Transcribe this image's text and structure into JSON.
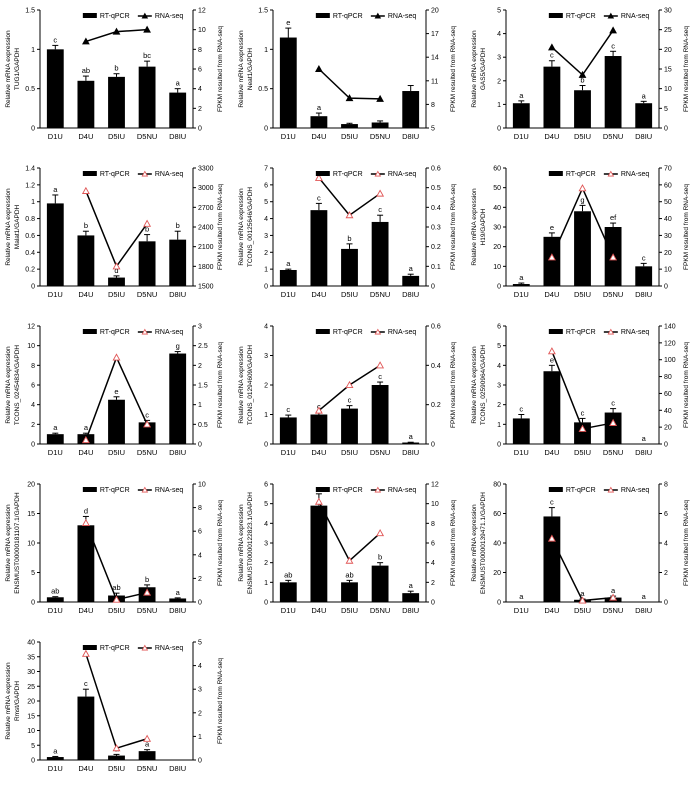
{
  "figure": {
    "x_categories": [
      "D1U",
      "D4U",
      "D5IU",
      "D5NU",
      "D8IU"
    ]
  },
  "legend": {
    "bar_label": "RT-qPCR",
    "line_label": "RNA-seq"
  },
  "axes": {
    "right_label": "FPKM resulted from RNA-seq",
    "left_label_line1": "Relative mRNA expression"
  },
  "colors": {
    "bar": "#000000",
    "line": "#000000",
    "marker_open": "#e05555",
    "marker_fill": "#ffffff"
  },
  "chart_data": [
    {
      "type": "bar",
      "gene": "TUG1/GAPDH",
      "categories": [
        "D1U",
        "D4U",
        "D5IU",
        "D5NU",
        "D8IU"
      ],
      "values": [
        1.0,
        0.6,
        0.65,
        0.78,
        0.45
      ],
      "errors": [
        0.05,
        0.06,
        0.04,
        0.07,
        0.05
      ],
      "letters": [
        "c",
        "ab",
        "b",
        "bc",
        "a"
      ],
      "ylim": [
        0,
        1.5
      ],
      "yticks": [
        0,
        0.5,
        1,
        1.5
      ],
      "line_values": [
        null,
        8.8,
        9.8,
        10.0,
        null
      ],
      "y2lim": [
        0,
        12
      ],
      "y2ticks": [
        0,
        2,
        4,
        6,
        8,
        10,
        12
      ],
      "marker": "filled"
    },
    {
      "type": "bar",
      "gene": "Neat1/GAPDH",
      "categories": [
        "D1U",
        "D4U",
        "D5IU",
        "D5NU",
        "D8IU"
      ],
      "values": [
        1.15,
        0.15,
        0.05,
        0.07,
        0.47
      ],
      "errors": [
        0.12,
        0.04,
        0.01,
        0.02,
        0.07
      ],
      "letters": [
        "e",
        "a",
        "",
        "",
        ""
      ],
      "ylim": [
        0,
        1.5
      ],
      "yticks": [
        0,
        0.5,
        1,
        1.5
      ],
      "line_values": [
        null,
        12.5,
        8.8,
        8.7,
        null
      ],
      "y2lim": [
        5,
        20
      ],
      "y2ticks": [
        5,
        8,
        11,
        14,
        17,
        20
      ],
      "marker": "filled"
    },
    {
      "type": "bar",
      "gene": "GAS5/GAPDH",
      "categories": [
        "D1U",
        "D4U",
        "D5IU",
        "D5NU",
        "D8IU"
      ],
      "values": [
        1.05,
        2.6,
        1.6,
        3.05,
        1.05
      ],
      "errors": [
        0.1,
        0.25,
        0.2,
        0.2,
        0.08
      ],
      "letters": [
        "a",
        "c",
        "b",
        "c",
        "a"
      ],
      "ylim": [
        0,
        5
      ],
      "yticks": [
        0,
        1,
        2,
        3,
        4,
        5
      ],
      "line_values": [
        null,
        20.5,
        13.5,
        24.8,
        null
      ],
      "y2lim": [
        0,
        30
      ],
      "y2ticks": [
        0,
        5,
        10,
        15,
        20,
        25,
        30
      ],
      "marker": "filled"
    },
    {
      "type": "bar",
      "gene": "Malat1/GAPDH",
      "categories": [
        "D1U",
        "D4U",
        "D5IU",
        "D5NU",
        "D8IU"
      ],
      "values": [
        0.98,
        0.6,
        0.1,
        0.53,
        0.55
      ],
      "errors": [
        0.1,
        0.05,
        0.02,
        0.08,
        0.1
      ],
      "letters": [
        "a",
        "b",
        "d",
        "b",
        "b"
      ],
      "ylim": [
        0,
        1.4
      ],
      "yticks": [
        0,
        0.2,
        0.4,
        0.6,
        0.8,
        1.0,
        1.2,
        1.4
      ],
      "line_values": [
        null,
        2950,
        1800,
        2450,
        null
      ],
      "y2lim": [
        1500,
        3300
      ],
      "y2ticks": [
        1500,
        1800,
        2100,
        2400,
        2700,
        3000,
        3300
      ],
      "marker": "open"
    },
    {
      "type": "bar",
      "gene": "TCONS_00125646/GAPDH",
      "categories": [
        "D1U",
        "D4U",
        "D5IU",
        "D5NU",
        "D8IU"
      ],
      "values": [
        0.95,
        4.5,
        2.2,
        3.8,
        0.6
      ],
      "errors": [
        0.05,
        0.4,
        0.3,
        0.4,
        0.1
      ],
      "letters": [
        "a",
        "c",
        "b",
        "c",
        "a"
      ],
      "ylim": [
        0,
        7
      ],
      "yticks": [
        0,
        1,
        2,
        3,
        4,
        5,
        6,
        7
      ],
      "line_values": [
        null,
        0.55,
        0.36,
        0.47,
        null
      ],
      "y2lim": [
        0,
        0.6
      ],
      "y2ticks": [
        0,
        0.1,
        0.2,
        0.3,
        0.4,
        0.5,
        0.6
      ],
      "marker": "open"
    },
    {
      "type": "bar",
      "gene": "H19/GAPDH",
      "categories": [
        "D1U",
        "D4U",
        "D5IU",
        "D5NU",
        "D8IU"
      ],
      "values": [
        1,
        25,
        38,
        30,
        10
      ],
      "errors": [
        0.5,
        2,
        3,
        2,
        1.5
      ],
      "letters": [
        "a",
        "e",
        "g",
        "ef",
        "c"
      ],
      "ylim": [
        0,
        60
      ],
      "yticks": [
        0,
        10,
        20,
        30,
        40,
        50,
        60
      ],
      "line_values": [
        null,
        17,
        58,
        17,
        null
      ],
      "y2lim": [
        0,
        70
      ],
      "y2ticks": [
        0,
        10,
        20,
        30,
        40,
        50,
        60,
        70
      ],
      "marker": "open"
    },
    {
      "type": "bar",
      "gene": "TCONS_02454834/GAPDH",
      "categories": [
        "D1U",
        "D4U",
        "D5IU",
        "D5NU",
        "D8IU"
      ],
      "values": [
        1,
        1,
        4.5,
        2.2,
        9.2
      ],
      "errors": [
        0.1,
        0.1,
        0.3,
        0.2,
        0.2
      ],
      "letters": [
        "a",
        "a",
        "e",
        "c",
        "g"
      ],
      "ylim": [
        0,
        12
      ],
      "yticks": [
        0,
        2,
        4,
        6,
        8,
        10,
        12
      ],
      "line_values": [
        null,
        0.1,
        2.2,
        0.5,
        null
      ],
      "y2lim": [
        0,
        3
      ],
      "y2ticks": [
        0,
        0.5,
        1,
        1.5,
        2,
        2.5,
        3
      ],
      "marker": "open"
    },
    {
      "type": "bar",
      "gene": "TCONS_01294609/GAPDH",
      "categories": [
        "D1U",
        "D4U",
        "D5IU",
        "D5NU",
        "D8IU"
      ],
      "values": [
        0.9,
        1.0,
        1.2,
        2.0,
        0.05
      ],
      "errors": [
        0.08,
        0.08,
        0.1,
        0.1,
        0.01
      ],
      "letters": [
        "c",
        "c",
        "c",
        "c",
        "a"
      ],
      "ylim": [
        0,
        4
      ],
      "yticks": [
        0,
        1,
        2,
        3,
        4
      ],
      "line_values": [
        null,
        0.17,
        0.3,
        0.4,
        null
      ],
      "y2lim": [
        0,
        0.6
      ],
      "y2ticks": [
        0,
        0.2,
        0.4,
        0.6
      ],
      "marker": "open"
    },
    {
      "type": "bar",
      "gene": "TCONS_02590964/GAPDH",
      "categories": [
        "D1U",
        "D4U",
        "D5IU",
        "D5NU",
        "D8IU"
      ],
      "values": [
        1.3,
        3.7,
        1.1,
        1.6,
        0
      ],
      "errors": [
        0.2,
        0.3,
        0.2,
        0.2,
        0
      ],
      "letters": [
        "c",
        "e",
        "c",
        "c",
        "a"
      ],
      "ylim": [
        0,
        6
      ],
      "yticks": [
        0,
        1,
        2,
        3,
        4,
        5,
        6
      ],
      "line_values": [
        null,
        110,
        18,
        25,
        null
      ],
      "y2lim": [
        0,
        140
      ],
      "y2ticks": [
        0,
        20,
        40,
        60,
        80,
        100,
        120,
        140
      ],
      "marker": "open"
    },
    {
      "type": "bar",
      "gene": "ENSMUST00000181107.1/GAPDH",
      "categories": [
        "D1U",
        "D4U",
        "D5IU",
        "D5NU",
        "D8IU"
      ],
      "values": [
        0.8,
        13,
        1.1,
        2.5,
        0.6
      ],
      "errors": [
        0.1,
        1.5,
        0.4,
        0.4,
        0.1
      ],
      "letters": [
        "ab",
        "d",
        "ab",
        "b",
        "a"
      ],
      "ylim": [
        0,
        20
      ],
      "yticks": [
        0,
        5,
        10,
        15,
        20
      ],
      "line_values": [
        null,
        6.7,
        0.2,
        0.8,
        null
      ],
      "y2lim": [
        0,
        10
      ],
      "y2ticks": [
        0,
        2,
        4,
        6,
        8,
        10
      ],
      "marker": "open"
    },
    {
      "type": "bar",
      "gene": "ENSMUST00000122823.1/GAPDH",
      "categories": [
        "D1U",
        "D4U",
        "D5IU",
        "D5NU",
        "D8IU"
      ],
      "values": [
        1.0,
        4.9,
        1.0,
        1.85,
        0.45
      ],
      "errors": [
        0.1,
        0.6,
        0.1,
        0.15,
        0.1
      ],
      "letters": [
        "ab",
        "c",
        "ab",
        "b",
        "a"
      ],
      "ylim": [
        0,
        6
      ],
      "yticks": [
        0,
        1,
        2,
        3,
        4,
        5,
        6
      ],
      "line_values": [
        null,
        10.2,
        4.2,
        7.0,
        null
      ],
      "y2lim": [
        0,
        12
      ],
      "y2ticks": [
        0,
        2,
        4,
        6,
        8,
        10,
        12
      ],
      "marker": "open"
    },
    {
      "type": "bar",
      "gene": "ENSMUST00000139471.1/GAPDH",
      "categories": [
        "D1U",
        "D4U",
        "D5IU",
        "D5NU",
        "D8IU"
      ],
      "values": [
        0,
        58,
        1.5,
        3,
        0
      ],
      "errors": [
        0,
        6,
        0.5,
        1,
        0
      ],
      "letters": [
        "a",
        "c",
        "a",
        "a",
        "a"
      ],
      "ylim": [
        0,
        80
      ],
      "yticks": [
        0,
        20,
        40,
        60,
        80
      ],
      "line_values": [
        null,
        4.3,
        0.1,
        0.3,
        null
      ],
      "y2lim": [
        0,
        8
      ],
      "y2ticks": [
        0,
        2,
        4,
        6,
        8
      ],
      "marker": "open"
    },
    {
      "type": "bar",
      "gene": "Rmst/GAPDH",
      "categories": [
        "D1U",
        "D4U",
        "D5IU",
        "D5NU",
        "D8IU"
      ],
      "values": [
        1,
        21.5,
        1.5,
        3,
        0
      ],
      "errors": [
        0.2,
        2.5,
        0.4,
        0.5,
        0
      ],
      "letters": [
        "a",
        "c",
        "a",
        "a",
        ""
      ],
      "ylim": [
        0,
        40
      ],
      "yticks": [
        0,
        5,
        10,
        15,
        20,
        25,
        30,
        35,
        40
      ],
      "line_values": [
        null,
        4.5,
        0.5,
        0.9,
        null
      ],
      "y2lim": [
        0,
        5
      ],
      "y2ticks": [
        0,
        1,
        2,
        3,
        4,
        5
      ],
      "marker": "open"
    }
  ]
}
